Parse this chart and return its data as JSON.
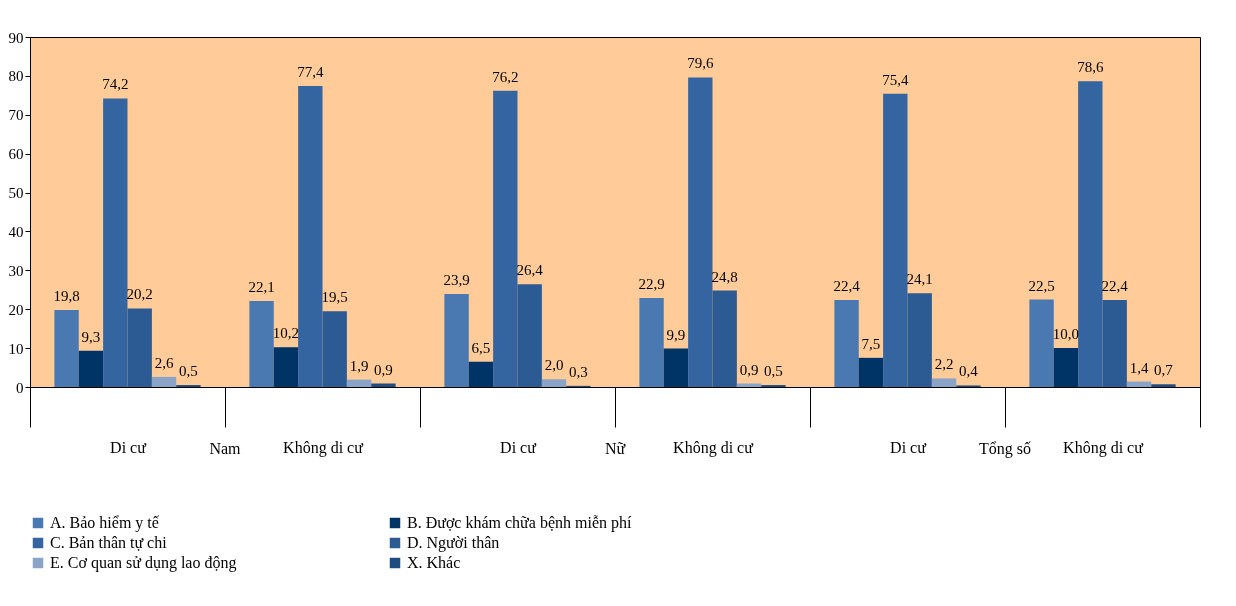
{
  "chart_data": {
    "type": "bar",
    "categories": [
      "Di cư",
      "Không di cư",
      "Di cư",
      "Không di cư",
      "Di cư",
      "Không di cư"
    ],
    "annotations": [
      "Nam",
      "Nữ",
      "Tổng số"
    ],
    "series": [
      {
        "name": "A. Bảo hiểm y tế",
        "color": "#4a78b0",
        "values": [
          19.8,
          22.1,
          23.9,
          22.9,
          22.4,
          22.5
        ],
        "value_labels": [
          "19,8",
          "22,1",
          "23,9",
          "22,9",
          "22,4",
          "22,5"
        ]
      },
      {
        "name": "B. Được khám chữa bệnh miễn phí",
        "color": "#003366",
        "values": [
          9.3,
          10.2,
          6.5,
          9.9,
          7.5,
          10.0
        ],
        "value_labels": [
          "9,3",
          "10,2",
          "6,5",
          "9,9",
          "7,5",
          "10,0"
        ]
      },
      {
        "name": "C. Bản thân tự chi",
        "color": "#3565a0",
        "values": [
          74.2,
          77.4,
          76.2,
          79.6,
          75.4,
          78.6
        ],
        "value_labels": [
          "74,2",
          "77,4",
          "76,2",
          "79,6",
          "75,4",
          "78,6"
        ]
      },
      {
        "name": "D. Người thân",
        "color": "#2c5a92",
        "values": [
          20.2,
          19.5,
          26.4,
          24.8,
          24.1,
          22.4
        ],
        "value_labels": [
          "20,2",
          "19,5",
          "26,4",
          "24,8",
          "24,1",
          "22,4"
        ]
      },
      {
        "name": "E. Cơ quan sử dụng lao động",
        "color": "#8aa4c8",
        "values": [
          2.6,
          1.9,
          2.0,
          0.9,
          2.2,
          1.4
        ],
        "value_labels": [
          "2,6",
          "1,9",
          "2,0",
          "0,9",
          "2,2",
          "1,4"
        ]
      },
      {
        "name": "X. Khác",
        "color": "#1f4c80",
        "values": [
          0.5,
          0.9,
          0.3,
          0.5,
          0.4,
          0.7
        ],
        "value_labels": [
          "0,5",
          "0,9",
          "0,3",
          "0,5",
          "0,4",
          "0,7"
        ]
      }
    ],
    "ylim": [
      0,
      90
    ],
    "yticks": [
      0,
      10,
      20,
      30,
      40,
      50,
      60,
      70,
      80,
      90
    ],
    "grid": false,
    "legend": "bottom"
  }
}
